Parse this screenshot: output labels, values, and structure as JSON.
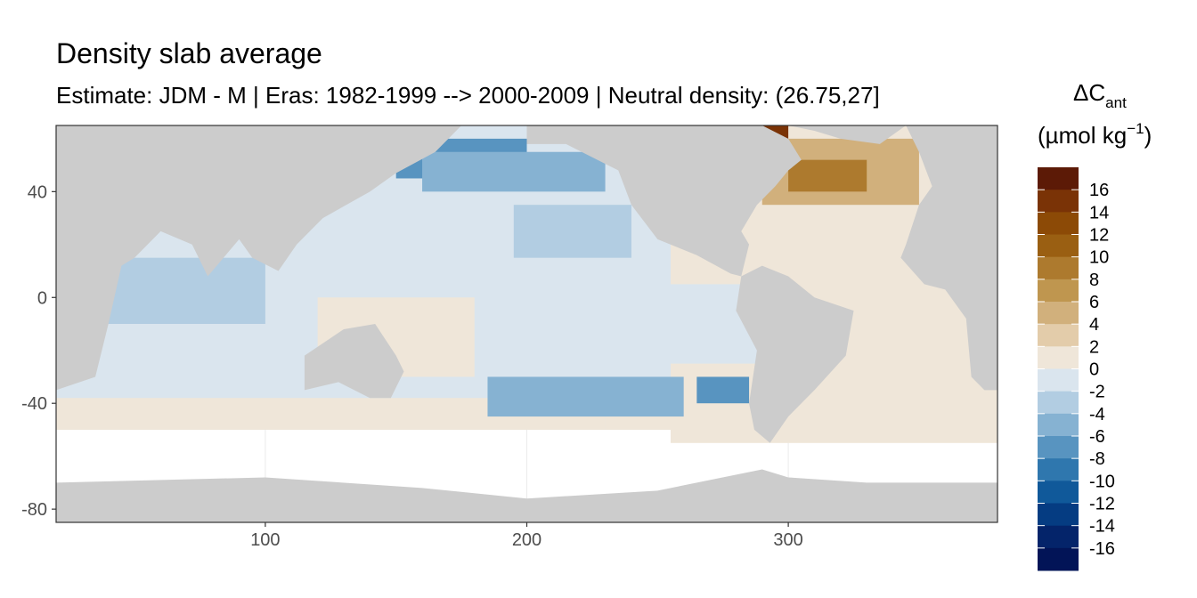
{
  "chart_data": {
    "type": "heatmap",
    "title": "Density slab average",
    "subtitle": "Estimate: JDM - M | Eras: 1982-1999 --> 2000-2009 | Neutral density: (26.75,27]",
    "xlabel": "",
    "ylabel": "",
    "xlim": [
      20,
      380
    ],
    "ylim": [
      -85,
      65
    ],
    "x_ticks": [
      100,
      200,
      300
    ],
    "y_ticks": [
      40,
      0,
      -40,
      -80
    ],
    "grid": true,
    "legend": {
      "placement": "right",
      "title": "ΔC",
      "title_subscript": "ant",
      "unit_prefix": "(µmol kg",
      "unit_sup": "−1",
      "unit_suffix": ")",
      "labels": [
        "16",
        "14",
        "12",
        "10",
        "8",
        "6",
        "4",
        "2",
        "0",
        "-2",
        "-4",
        "-6",
        "-8",
        "-10",
        "-12",
        "-14",
        "-16"
      ],
      "colors": [
        "#5c1a06",
        "#7a3306",
        "#8c4a06",
        "#9a5f12",
        "#ad7a2e",
        "#bf964f",
        "#d1b07c",
        "#e3ccaa",
        "#efe6d9",
        "#dae5ee",
        "#b2cde2",
        "#86b2d2",
        "#5894c0",
        "#2f77ae",
        "#10599a",
        "#053c82",
        "#04246a",
        "#021457"
      ]
    },
    "regions": {
      "land_color": "#cccccc",
      "nodata_color": "#ffffff",
      "patches": [
        {
          "x0": 20,
          "x1": 360,
          "y0": -50,
          "y1": 65,
          "value": -1
        },
        {
          "x0": 255,
          "x1": 380,
          "y0": -55,
          "y1": 65,
          "value": 1
        },
        {
          "x0": 20,
          "x1": 230,
          "y0": -50,
          "y1": -38,
          "value": 2
        },
        {
          "x0": 230,
          "x1": 380,
          "y0": -50,
          "y1": -42,
          "value": 2
        },
        {
          "x0": 120,
          "x1": 180,
          "y0": -30,
          "y1": 0,
          "value": 2
        },
        {
          "x0": 150,
          "x1": 200,
          "y0": 45,
          "y1": 60,
          "value": -6
        },
        {
          "x0": 160,
          "x1": 230,
          "y0": 40,
          "y1": 55,
          "value": -4
        },
        {
          "x0": 195,
          "x1": 240,
          "y0": 15,
          "y1": 35,
          "value": -3
        },
        {
          "x0": 25,
          "x1": 100,
          "y0": -10,
          "y1": 15,
          "value": -3
        },
        {
          "x0": 185,
          "x1": 260,
          "y0": -45,
          "y1": -30,
          "value": -4
        },
        {
          "x0": 265,
          "x1": 285,
          "y0": -40,
          "y1": -30,
          "value": -6
        },
        {
          "x0": 290,
          "x1": 350,
          "y0": 35,
          "y1": 60,
          "value": 6
        },
        {
          "x0": 300,
          "x1": 330,
          "y0": 40,
          "y1": 52,
          "value": 10
        },
        {
          "x0": 283,
          "x1": 300,
          "y0": 48,
          "y1": 65,
          "value": 16
        },
        {
          "x0": 240,
          "x1": 290,
          "y0": -25,
          "y1": 5,
          "value": -1
        },
        {
          "x0": 330,
          "x1": 365,
          "y0": -35,
          "y1": -10,
          "value": 2
        }
      ],
      "land": [
        {
          "name": "Asia",
          "points": [
            [
              20,
              65
            ],
            [
              175,
              65
            ],
            [
              165,
              55
            ],
            [
              150,
              47
            ],
            [
              140,
              40
            ],
            [
              122,
              30
            ],
            [
              112,
              20
            ],
            [
              105,
              10
            ],
            [
              95,
              15
            ],
            [
              90,
              22
            ],
            [
              78,
              8
            ],
            [
              72,
              20
            ],
            [
              60,
              25
            ],
            [
              50,
              15
            ],
            [
              45,
              12
            ],
            [
              40,
              -10
            ],
            [
              35,
              -30
            ],
            [
              20,
              -35
            ]
          ]
        },
        {
          "name": "Australia",
          "points": [
            [
              115,
              -22
            ],
            [
              130,
              -12
            ],
            [
              142,
              -10
            ],
            [
              150,
              -22
            ],
            [
              153,
              -28
            ],
            [
              148,
              -38
            ],
            [
              140,
              -38
            ],
            [
              128,
              -32
            ],
            [
              115,
              -35
            ]
          ]
        },
        {
          "name": "North America",
          "points": [
            [
              200,
              65
            ],
            [
              200,
              58
            ],
            [
              215,
              58
            ],
            [
              235,
              48
            ],
            [
              240,
              35
            ],
            [
              250,
              22
            ],
            [
              265,
              16
            ],
            [
              278,
              9
            ],
            [
              282,
              8
            ],
            [
              285,
              20
            ],
            [
              282,
              25
            ],
            [
              288,
              35
            ],
            [
              295,
              42
            ],
            [
              300,
              48
            ],
            [
              305,
              52
            ],
            [
              300,
              60
            ],
            [
              290,
              65
            ]
          ]
        },
        {
          "name": "South America",
          "points": [
            [
              282,
              8
            ],
            [
              290,
              12
            ],
            [
              300,
              8
            ],
            [
              310,
              0
            ],
            [
              325,
              -5
            ],
            [
              322,
              -22
            ],
            [
              310,
              -35
            ],
            [
              300,
              -45
            ],
            [
              293,
              -55
            ],
            [
              287,
              -50
            ],
            [
              285,
              -40
            ],
            [
              288,
              -20
            ],
            [
              280,
              -5
            ]
          ]
        },
        {
          "name": "Greenland",
          "points": [
            [
              300,
              65
            ],
            [
              345,
              65
            ],
            [
              335,
              58
            ],
            [
              320,
              60
            ],
            [
              310,
              63
            ]
          ]
        },
        {
          "name": "Europe/Africa",
          "points": [
            [
              345,
              65
            ],
            [
              350,
              55
            ],
            [
              355,
              42
            ],
            [
              350,
              35
            ],
            [
              345,
              20
            ],
            [
              343,
              15
            ],
            [
              352,
              5
            ],
            [
              360,
              3
            ],
            [
              368,
              -8
            ],
            [
              370,
              -30
            ],
            [
              375,
              -35
            ],
            [
              380,
              -35
            ],
            [
              380,
              65
            ]
          ]
        },
        {
          "name": "Antarctica",
          "points": [
            [
              20,
              -70
            ],
            [
              100,
              -68
            ],
            [
              160,
              -72
            ],
            [
              200,
              -76
            ],
            [
              250,
              -73
            ],
            [
              290,
              -65
            ],
            [
              300,
              -68
            ],
            [
              330,
              -70
            ],
            [
              380,
              -70
            ],
            [
              380,
              -85
            ],
            [
              20,
              -85
            ]
          ]
        }
      ]
    }
  }
}
